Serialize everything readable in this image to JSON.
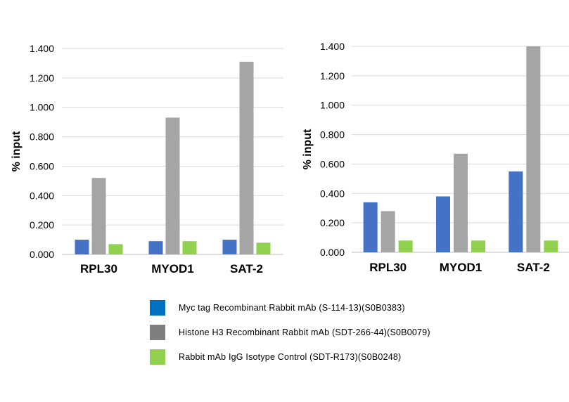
{
  "chart_data": [
    {
      "type": "bar",
      "categories": [
        "RPL30",
        "MYOD1",
        "SAT-2"
      ],
      "ylabel": "% input",
      "ylim": [
        0,
        1.4
      ],
      "yticks": [
        "0.000",
        "0.200",
        "0.400",
        "0.600",
        "0.800",
        "1.000",
        "1.200",
        "1.400"
      ],
      "grid": true,
      "series": [
        {
          "name": "Myc tag Recombinant Rabbit mAb (S-114-13)(S0B0383)",
          "color": "#4472c4",
          "values": [
            0.1,
            0.09,
            0.1
          ]
        },
        {
          "name": "Histone H3 Recombinant Rabbit mAb (SDT-266-44)(S0B0079)",
          "color": "#a5a5a5",
          "values": [
            0.52,
            0.93,
            1.31
          ]
        },
        {
          "name": "Rabbit mAb IgG Isotype Control (SDT-R173)(S0B0248)",
          "color": "#92d050",
          "values": [
            0.07,
            0.09,
            0.08
          ]
        }
      ]
    },
    {
      "type": "bar",
      "categories": [
        "RPL30",
        "MYOD1",
        "SAT-2"
      ],
      "ylabel": "% input",
      "ylim": [
        0,
        1.4
      ],
      "yticks": [
        "0.000",
        "0.200",
        "0.400",
        "0.600",
        "0.800",
        "1.000",
        "1.200",
        "1.400"
      ],
      "grid": true,
      "series": [
        {
          "name": "Myc tag Recombinant Rabbit mAb (S-114-13)(S0B0383)",
          "color": "#4472c4",
          "values": [
            0.34,
            0.38,
            0.55
          ]
        },
        {
          "name": "Histone H3 Recombinant Rabbit mAb (SDT-266-44)(S0B0079)",
          "color": "#a5a5a5",
          "values": [
            0.28,
            0.67,
            1.4
          ]
        },
        {
          "name": "Rabbit mAb IgG Isotype Control (SDT-R173)(S0B0248)",
          "color": "#92d050",
          "values": [
            0.08,
            0.08,
            0.08
          ]
        }
      ]
    }
  ],
  "legend": {
    "placement": "bottom",
    "items": [
      {
        "label": "Myc tag Recombinant Rabbit mAb (S-114-13)(S0B0383)",
        "color": "#0070c0"
      },
      {
        "label": "Histone H3 Recombinant Rabbit mAb (SDT-266-44)(S0B0079)",
        "color": "#7f7f7f"
      },
      {
        "label": "Rabbit mAb IgG Isotype Control (SDT-R173)(S0B0248)",
        "color": "#92d050"
      }
    ]
  }
}
